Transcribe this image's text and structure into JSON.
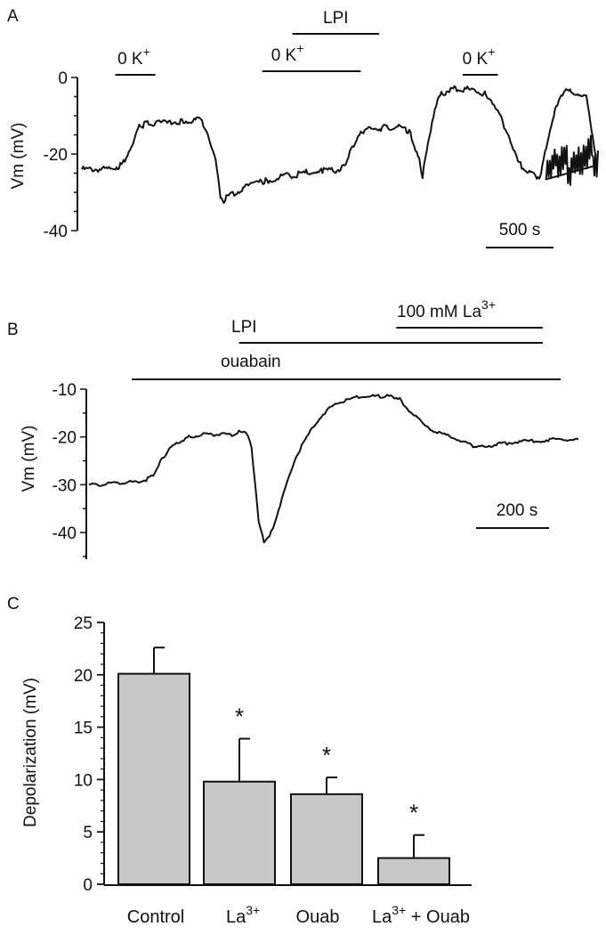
{
  "chart_data": [
    {
      "panel": "A",
      "type": "line",
      "ylabel": "Vm (mV)",
      "ylim": [
        -40,
        0
      ],
      "yticks": [
        0,
        -20,
        -40
      ],
      "ytick_labels": [
        "0",
        "-20",
        "-40"
      ],
      "scale_bar": "500 s",
      "x_seconds_per_scalebar": 500,
      "series": [
        {
          "x": [
            0,
            85,
            100,
            115,
            125,
            148,
            165,
            175,
            183,
            190,
            200,
            240,
            300,
            360,
            400,
            415,
            425,
            440,
            460,
            510,
            550,
            575,
            600,
            620,
            640,
            660,
            690,
            720,
            740,
            760,
            790,
            810,
            835,
            870,
            885,
            895,
            905,
            920,
            945,
            980,
            1010,
            1020,
            1025,
            1040,
            1065,
            1080,
            1100,
            1115,
            1130,
            1150,
            1175,
            1210,
            1245,
            1280,
            1295,
            1305,
            1325,
            1340,
            1355,
            1365,
            1375,
            1390,
            1420,
            1450,
            1480,
            1510,
            1545
          ],
          "y": [
            -24,
            -24,
            -23.5,
            -23,
            -22,
            -18,
            -14,
            -12.5,
            -12.5,
            -12,
            -12,
            -12,
            -11.5,
            -11,
            -22,
            -31,
            -32,
            -31,
            -30,
            -28,
            -27,
            -26.5,
            -26,
            -25.5,
            -25.5,
            -25,
            -24.5,
            -24.5,
            -24,
            -24.5,
            -23,
            -18,
            -14,
            -13.5,
            -13.5,
            -13.5,
            -13,
            -13,
            -13,
            -14,
            -21,
            -27,
            -22,
            -15,
            -6,
            -4,
            -3.5,
            -3,
            -3,
            -3,
            -3.5,
            -4.5,
            -9,
            -15.5,
            -19,
            -22,
            -24,
            -25,
            -25.5,
            -26,
            -25,
            -18,
            -7,
            -3.5,
            -4,
            -5,
            -25
          ],
          "y_tail_noise": [
            -23,
            -22,
            -24,
            -20,
            -25,
            -23,
            -22,
            -20,
            -19,
            -24,
            -21
          ]
        }
      ],
      "annotations": [
        {
          "label": "0 K",
          "sup": "+",
          "x_range": [
            100,
            220
          ]
        },
        {
          "label": "0 K",
          "sup": "+",
          "x_range": [
            540,
            835
          ]
        },
        {
          "label": "LPI",
          "x_range": [
            630,
            890
          ]
        },
        {
          "label": "0 K",
          "sup": "+",
          "x_range": [
            1140,
            1245
          ]
        }
      ]
    },
    {
      "panel": "B",
      "type": "line",
      "ylabel": "Vm (mV)",
      "ylim": [
        -40,
        -10
      ],
      "yticks": [
        -10,
        -20,
        -30,
        -40
      ],
      "ytick_labels": [
        "-10",
        "-20",
        "-30",
        "-40"
      ],
      "scale_bar": "200 s",
      "x_seconds_per_scalebar": 200,
      "series": [
        {
          "x": [
            0,
            40,
            80,
            120,
            160,
            180,
            200,
            225,
            250,
            280,
            320,
            360,
            400,
            420,
            440,
            455,
            465,
            475,
            490,
            510,
            540,
            580,
            630,
            670,
            710,
            760,
            800,
            830,
            850,
            870,
            900,
            960,
            1010,
            1050,
            1080,
            1110,
            1150,
            1200,
            1260,
            1310,
            1370
          ],
          "y": [
            -30,
            -30,
            -29.5,
            -29.5,
            -29,
            -28,
            -25,
            -22.5,
            -21,
            -20,
            -19.5,
            -19.5,
            -19.5,
            -19,
            -19,
            -22,
            -30,
            -38,
            -42,
            -40,
            -33,
            -24,
            -17.5,
            -14,
            -12.5,
            -11.5,
            -11.5,
            -11.5,
            -11.5,
            -12,
            -15,
            -18.5,
            -20,
            -21,
            -22,
            -22,
            -21.5,
            -21,
            -20.8,
            -20.5,
            -20.5
          ]
        }
      ],
      "annotations": [
        {
          "label": "LPI",
          "x_range": [
            420,
            1270
          ]
        },
        {
          "label": "100 mM La",
          "sup": "3+",
          "x_range": [
            860,
            1270
          ]
        },
        {
          "label": "ouabain",
          "x_range": [
            120,
            1320
          ]
        }
      ]
    },
    {
      "panel": "C",
      "type": "bar",
      "ylabel": "Depolarization (mV)",
      "ylim": [
        0,
        25
      ],
      "yticks": [
        0,
        5,
        10,
        15,
        20,
        25
      ],
      "ytick_labels": [
        "0",
        "5",
        "10",
        "15",
        "20",
        "25"
      ],
      "categories": [
        {
          "label": "Control"
        },
        {
          "label": "La",
          "sup": "3+"
        },
        {
          "label": "Ouab"
        },
        {
          "label": "La",
          "sup": "3+",
          "suffix": " + Ouab"
        }
      ],
      "values": [
        20.1,
        9.8,
        8.6,
        2.5
      ],
      "errors": [
        2.5,
        4.1,
        1.6,
        2.2
      ],
      "significance": [
        "",
        "*",
        "*",
        "*"
      ],
      "bar_color": "#c8c8c8"
    }
  ]
}
